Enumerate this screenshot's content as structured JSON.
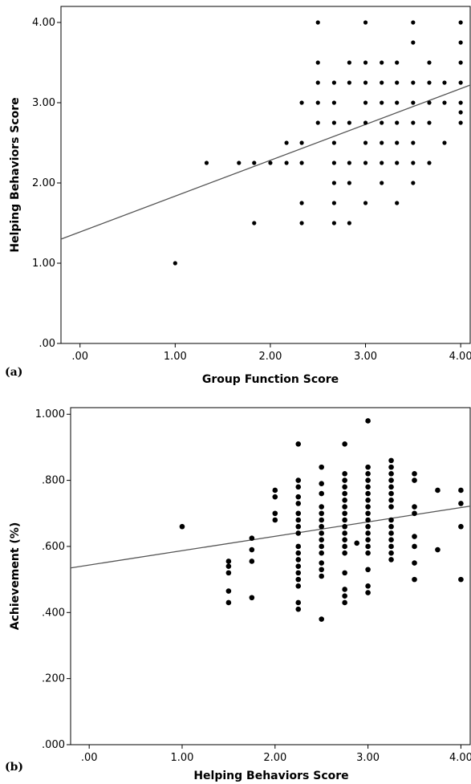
{
  "chart_data": [
    {
      "type": "scatter",
      "panel_label": "(a)",
      "xlabel": "Group Function Score",
      "ylabel": "Helping Behaviors Score",
      "xlim": [
        -0.2,
        4.1
      ],
      "ylim": [
        0,
        4.2
      ],
      "xticks": [
        0,
        1,
        2,
        3,
        4
      ],
      "xtick_labels": [
        ".00",
        "1.00",
        "2.00",
        "3.00",
        "4.00"
      ],
      "yticks": [
        0,
        1,
        2,
        3,
        4
      ],
      "ytick_labels": [
        ".00",
        "1.00",
        "2.00",
        "3.00",
        "4.00"
      ],
      "grid": false,
      "fit_line": {
        "x": [
          -0.2,
          4.1
        ],
        "y": [
          1.3,
          3.22
        ]
      },
      "points": [
        [
          1.0,
          1.0
        ],
        [
          1.33,
          2.25
        ],
        [
          1.67,
          2.25
        ],
        [
          1.83,
          2.25
        ],
        [
          1.83,
          1.5
        ],
        [
          2.0,
          2.25
        ],
        [
          2.17,
          2.5
        ],
        [
          2.17,
          2.25
        ],
        [
          2.33,
          3.0
        ],
        [
          2.33,
          2.5
        ],
        [
          2.33,
          2.25
        ],
        [
          2.33,
          1.75
        ],
        [
          2.33,
          1.5
        ],
        [
          2.5,
          4.0
        ],
        [
          2.5,
          3.5
        ],
        [
          2.5,
          3.25
        ],
        [
          2.5,
          3.0
        ],
        [
          2.5,
          2.75
        ],
        [
          2.67,
          3.25
        ],
        [
          2.67,
          3.0
        ],
        [
          2.67,
          2.75
        ],
        [
          2.67,
          2.5
        ],
        [
          2.67,
          2.25
        ],
        [
          2.67,
          2.0
        ],
        [
          2.67,
          1.75
        ],
        [
          2.67,
          1.5
        ],
        [
          2.83,
          3.5
        ],
        [
          2.83,
          3.25
        ],
        [
          2.83,
          2.75
        ],
        [
          2.83,
          2.25
        ],
        [
          2.83,
          2.0
        ],
        [
          2.83,
          1.5
        ],
        [
          3.0,
          4.0
        ],
        [
          3.0,
          3.5
        ],
        [
          3.0,
          3.25
        ],
        [
          3.0,
          3.0
        ],
        [
          3.0,
          2.75
        ],
        [
          3.0,
          2.5
        ],
        [
          3.0,
          2.25
        ],
        [
          3.0,
          1.75
        ],
        [
          3.17,
          3.5
        ],
        [
          3.17,
          3.25
        ],
        [
          3.17,
          3.0
        ],
        [
          3.17,
          2.75
        ],
        [
          3.17,
          2.5
        ],
        [
          3.17,
          2.25
        ],
        [
          3.17,
          2.0
        ],
        [
          3.33,
          3.5
        ],
        [
          3.33,
          3.25
        ],
        [
          3.33,
          3.0
        ],
        [
          3.33,
          2.75
        ],
        [
          3.33,
          2.5
        ],
        [
          3.33,
          2.25
        ],
        [
          3.33,
          1.75
        ],
        [
          3.5,
          4.0
        ],
        [
          3.5,
          3.75
        ],
        [
          3.5,
          3.25
        ],
        [
          3.5,
          3.0
        ],
        [
          3.5,
          2.75
        ],
        [
          3.5,
          2.5
        ],
        [
          3.5,
          2.25
        ],
        [
          3.5,
          2.0
        ],
        [
          3.67,
          3.5
        ],
        [
          3.67,
          3.25
        ],
        [
          3.67,
          3.0
        ],
        [
          3.67,
          2.75
        ],
        [
          3.67,
          2.25
        ],
        [
          3.83,
          3.25
        ],
        [
          3.83,
          3.0
        ],
        [
          3.83,
          2.5
        ],
        [
          4.0,
          4.0
        ],
        [
          4.0,
          3.75
        ],
        [
          4.0,
          3.5
        ],
        [
          4.0,
          3.25
        ],
        [
          4.0,
          3.0
        ],
        [
          4.0,
          2.88
        ],
        [
          4.0,
          2.75
        ]
      ]
    },
    {
      "type": "scatter",
      "panel_label": "(b)",
      "xlabel": "Helping Behaviors Score",
      "ylabel": "Achievement (%)",
      "xlim": [
        -0.2,
        4.1
      ],
      "ylim": [
        0,
        1.02
      ],
      "xticks": [
        0,
        1,
        2,
        3,
        4
      ],
      "xtick_labels": [
        ".00",
        "1.00",
        "2.00",
        "3.00",
        "4.00"
      ],
      "yticks": [
        0,
        0.2,
        0.4,
        0.6,
        0.8,
        1.0
      ],
      "ytick_labels": [
        ".000",
        ".200",
        ".400",
        ".600",
        ".800",
        "1.000"
      ],
      "grid": false,
      "fit_line": {
        "x": [
          -0.2,
          4.1
        ],
        "y": [
          0.535,
          0.722
        ]
      },
      "points": [
        [
          1.0,
          0.66
        ],
        [
          1.5,
          0.555
        ],
        [
          1.5,
          0.54
        ],
        [
          1.5,
          0.52
        ],
        [
          1.5,
          0.465
        ],
        [
          1.5,
          0.43
        ],
        [
          1.75,
          0.625
        ],
        [
          1.75,
          0.59
        ],
        [
          1.75,
          0.555
        ],
        [
          1.75,
          0.445
        ],
        [
          2.0,
          0.77
        ],
        [
          2.0,
          0.75
        ],
        [
          2.0,
          0.7
        ],
        [
          2.0,
          0.68
        ],
        [
          2.25,
          0.91
        ],
        [
          2.25,
          0.8
        ],
        [
          2.25,
          0.78
        ],
        [
          2.25,
          0.75
        ],
        [
          2.25,
          0.73
        ],
        [
          2.25,
          0.7
        ],
        [
          2.25,
          0.68
        ],
        [
          2.25,
          0.66
        ],
        [
          2.25,
          0.64
        ],
        [
          2.25,
          0.6
        ],
        [
          2.25,
          0.58
        ],
        [
          2.25,
          0.56
        ],
        [
          2.25,
          0.54
        ],
        [
          2.25,
          0.52
        ],
        [
          2.25,
          0.5
        ],
        [
          2.25,
          0.48
        ],
        [
          2.25,
          0.43
        ],
        [
          2.25,
          0.41
        ],
        [
          2.5,
          0.84
        ],
        [
          2.5,
          0.79
        ],
        [
          2.5,
          0.76
        ],
        [
          2.5,
          0.72
        ],
        [
          2.5,
          0.7
        ],
        [
          2.5,
          0.68
        ],
        [
          2.5,
          0.66
        ],
        [
          2.5,
          0.64
        ],
        [
          2.5,
          0.62
        ],
        [
          2.5,
          0.6
        ],
        [
          2.5,
          0.58
        ],
        [
          2.5,
          0.55
        ],
        [
          2.5,
          0.53
        ],
        [
          2.5,
          0.51
        ],
        [
          2.5,
          0.38
        ],
        [
          2.75,
          0.91
        ],
        [
          2.75,
          0.82
        ],
        [
          2.75,
          0.8
        ],
        [
          2.75,
          0.78
        ],
        [
          2.75,
          0.76
        ],
        [
          2.75,
          0.74
        ],
        [
          2.75,
          0.72
        ],
        [
          2.75,
          0.7
        ],
        [
          2.75,
          0.68
        ],
        [
          2.75,
          0.66
        ],
        [
          2.75,
          0.64
        ],
        [
          2.75,
          0.62
        ],
        [
          2.75,
          0.6
        ],
        [
          2.75,
          0.58
        ],
        [
          2.75,
          0.52
        ],
        [
          2.75,
          0.47
        ],
        [
          2.75,
          0.45
        ],
        [
          2.75,
          0.43
        ],
        [
          2.88,
          0.61
        ],
        [
          3.0,
          0.98
        ],
        [
          3.0,
          0.84
        ],
        [
          3.0,
          0.82
        ],
        [
          3.0,
          0.8
        ],
        [
          3.0,
          0.78
        ],
        [
          3.0,
          0.76
        ],
        [
          3.0,
          0.74
        ],
        [
          3.0,
          0.72
        ],
        [
          3.0,
          0.7
        ],
        [
          3.0,
          0.68
        ],
        [
          3.0,
          0.66
        ],
        [
          3.0,
          0.64
        ],
        [
          3.0,
          0.62
        ],
        [
          3.0,
          0.6
        ],
        [
          3.0,
          0.58
        ],
        [
          3.0,
          0.53
        ],
        [
          3.0,
          0.48
        ],
        [
          3.0,
          0.46
        ],
        [
          3.25,
          0.86
        ],
        [
          3.25,
          0.84
        ],
        [
          3.25,
          0.82
        ],
        [
          3.25,
          0.8
        ],
        [
          3.25,
          0.78
        ],
        [
          3.25,
          0.76
        ],
        [
          3.25,
          0.74
        ],
        [
          3.25,
          0.72
        ],
        [
          3.25,
          0.68
        ],
        [
          3.25,
          0.66
        ],
        [
          3.25,
          0.64
        ],
        [
          3.25,
          0.62
        ],
        [
          3.25,
          0.6
        ],
        [
          3.25,
          0.58
        ],
        [
          3.25,
          0.56
        ],
        [
          3.5,
          0.82
        ],
        [
          3.5,
          0.8
        ],
        [
          3.5,
          0.72
        ],
        [
          3.5,
          0.7
        ],
        [
          3.5,
          0.63
        ],
        [
          3.5,
          0.6
        ],
        [
          3.5,
          0.55
        ],
        [
          3.5,
          0.5
        ],
        [
          3.75,
          0.77
        ],
        [
          3.75,
          0.59
        ],
        [
          4.0,
          0.77
        ],
        [
          4.0,
          0.73
        ],
        [
          4.0,
          0.66
        ],
        [
          4.0,
          0.5
        ]
      ]
    }
  ]
}
